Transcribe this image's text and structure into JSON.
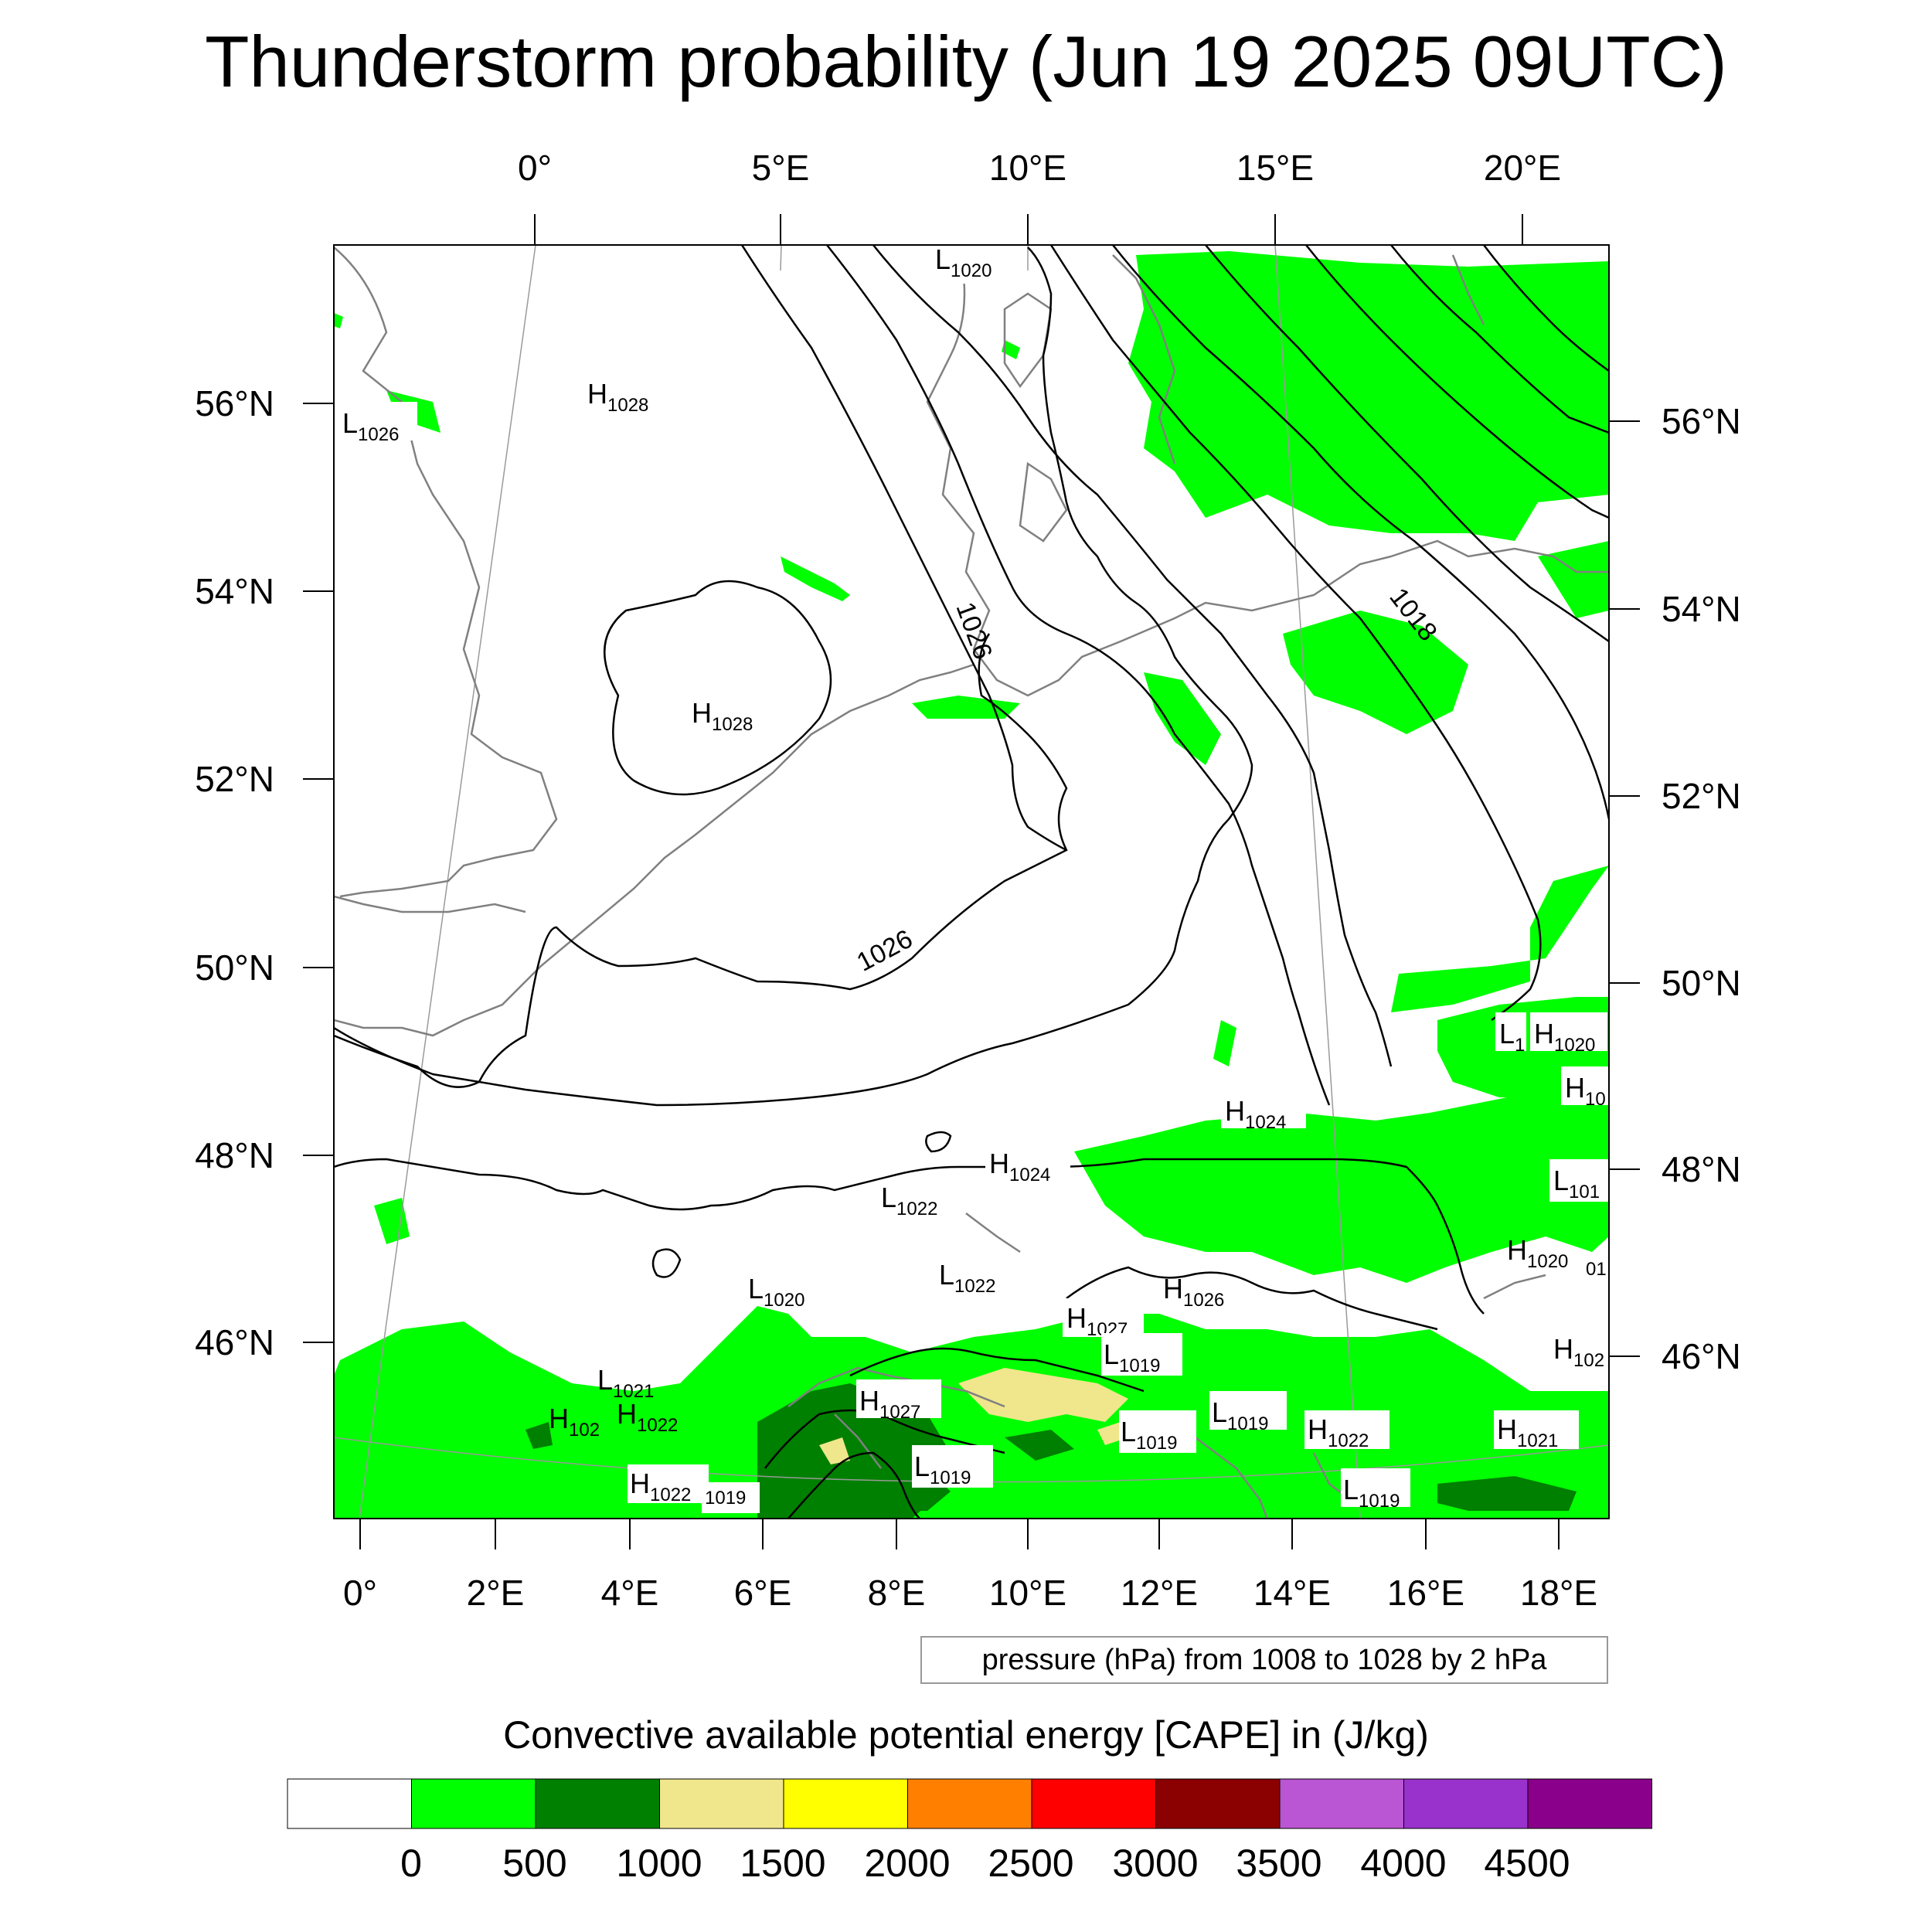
{
  "title": "Thunderstorm probability (Jun 19 2025 09UTC)",
  "top_lon_labels": [
    "0°",
    "5°E",
    "10°E",
    "15°E",
    "20°E"
  ],
  "bottom_lon_labels": [
    "0°",
    "2°E",
    "4°E",
    "6°E",
    "8°E",
    "10°E",
    "12°E",
    "14°E",
    "16°E",
    "18°E"
  ],
  "left_lat_labels": [
    "56°N",
    "54°N",
    "52°N",
    "50°N",
    "48°N",
    "46°N"
  ],
  "right_lat_labels": [
    "56°N",
    "54°N",
    "52°N",
    "50°N",
    "48°N",
    "46°N"
  ],
  "isobar_labels": [
    "1026",
    "1026",
    "1018"
  ],
  "pressure_centers": [
    {
      "letter": "L",
      "value": "1020"
    },
    {
      "letter": "L",
      "value": "1026"
    },
    {
      "letter": "H",
      "value": "1028"
    },
    {
      "letter": "H",
      "value": "1028"
    },
    {
      "letter": "L",
      "value": "1"
    },
    {
      "letter": "H",
      "value": "1020"
    },
    {
      "letter": "H",
      "value": "10"
    },
    {
      "letter": "H",
      "value": "1024"
    },
    {
      "letter": "H",
      "value": "1024"
    },
    {
      "letter": "L",
      "value": "1022"
    },
    {
      "letter": "L",
      "value": "101"
    },
    {
      "letter": "L",
      "value": "1020"
    },
    {
      "letter": "L",
      "value": "1022"
    },
    {
      "letter": "H",
      "value": "1026"
    },
    {
      "letter": "H",
      "value": "1027"
    },
    {
      "letter": "H",
      "value": "1020"
    },
    {
      "letter": "L",
      "value": "1019"
    },
    {
      "letter": "L",
      "value": "1021"
    },
    {
      "letter": "H",
      "value": "1027"
    },
    {
      "letter": "H",
      "value": "102"
    },
    {
      "letter": "H",
      "value": "1022"
    },
    {
      "letter": "L",
      "value": "1019"
    },
    {
      "letter": "L",
      "value": "1019"
    },
    {
      "letter": "H",
      "value": "1022"
    },
    {
      "letter": "H",
      "value": "1021"
    },
    {
      "letter": "L",
      "value": "1019"
    },
    {
      "letter": "H",
      "value": "1022"
    },
    {
      "letter": "L",
      "value": "1019"
    },
    {
      "letter": "H",
      "value": "102"
    }
  ],
  "stray_labels": [
    "01",
    "1019"
  ],
  "contour_info": "pressure (hPa) from 1008 to 1028 by 2 hPa",
  "colorbar": {
    "title": "Convective available potential energy [CAPE] in (J/kg)",
    "tick_labels": [
      "0",
      "500",
      "1000",
      "1500",
      "2000",
      "2500",
      "3000",
      "3500",
      "4000",
      "4500"
    ],
    "colors": [
      "#ffffff",
      "#00ff00",
      "#008000",
      "#f0e68c",
      "#ffff00",
      "#ff8000",
      "#ff0000",
      "#8b0000",
      "#ba55d3",
      "#9932cc",
      "#8b008b"
    ]
  },
  "colors": {
    "cape_low": "#00ff00",
    "cape_mid": "#008000",
    "cape_high": "#f0e68c",
    "coastline": "#808080",
    "isobar": "#000000"
  }
}
